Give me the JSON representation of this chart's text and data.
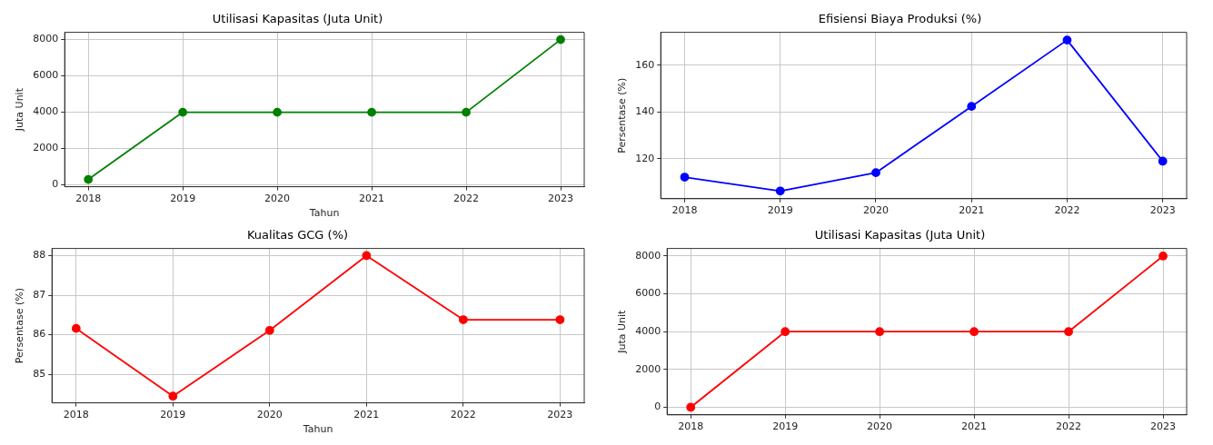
{
  "chart_data": [
    {
      "type": "line",
      "title": "Utilisasi Kapasitas (Juta Unit)",
      "xlabel": "Tahun",
      "ylabel": "Juta Unit",
      "x": [
        2018,
        2019,
        2020,
        2021,
        2022,
        2023
      ],
      "xlim": [
        2017.75,
        2023.25
      ],
      "xticks": [
        2018,
        2019,
        2020,
        2021,
        2022,
        2023
      ],
      "ylim": [
        -100,
        8400
      ],
      "yticks": [
        0,
        2000,
        4000,
        6000,
        8000
      ],
      "grid": true,
      "marker": "circle",
      "series": [
        {
          "color": "#008000",
          "values": [
            300,
            4000,
            4000,
            4000,
            4000,
            8000
          ]
        }
      ]
    },
    {
      "type": "line",
      "title": "Efisiensi Biaya Produksi (%)",
      "ylabel": "Persentase (%)",
      "x": [
        2018,
        2019,
        2020,
        2021,
        2022,
        2023
      ],
      "xlim": [
        2017.75,
        2023.25
      ],
      "xticks": [
        2018,
        2019,
        2020,
        2021,
        2022,
        2023
      ],
      "ylim": [
        103,
        174
      ],
      "yticks": [
        120,
        140,
        160
      ],
      "grid": true,
      "marker": "circle",
      "series": [
        {
          "color": "#0000ff",
          "values": [
            112.2,
            106.3,
            114.1,
            142.4,
            170.7,
            119
          ]
        }
      ]
    },
    {
      "type": "line",
      "title": "Kualitas GCG (%)",
      "xlabel": "Tahun",
      "ylabel": "Persentase (%)",
      "x": [
        2018,
        2019,
        2020,
        2021,
        2022,
        2023
      ],
      "xlim": [
        2017.75,
        2023.25
      ],
      "xticks": [
        2018,
        2019,
        2020,
        2021,
        2022,
        2023
      ],
      "ylim": [
        84.28,
        88.18
      ],
      "yticks": [
        85,
        86,
        87,
        88
      ],
      "grid": true,
      "marker": "circle",
      "series": [
        {
          "color": "#ff0000",
          "values": [
            86.16,
            84.45,
            86.11,
            88,
            86.38,
            86.38
          ]
        }
      ]
    },
    {
      "type": "line",
      "title": "Utilisasi Kapasitas (Juta Unit)",
      "ylabel": "Juta Unit",
      "x": [
        2018,
        2019,
        2020,
        2021,
        2022,
        2023
      ],
      "xlim": [
        2017.75,
        2023.25
      ],
      "xticks": [
        2018,
        2019,
        2020,
        2021,
        2022,
        2023
      ],
      "ylim": [
        -400,
        8400
      ],
      "yticks": [
        0,
        2000,
        4000,
        6000,
        8000
      ],
      "grid": true,
      "marker": "circle",
      "series": [
        {
          "color": "#ff0000",
          "values": [
            0,
            4000,
            4000,
            4000,
            4000,
            8000
          ]
        }
      ]
    }
  ]
}
